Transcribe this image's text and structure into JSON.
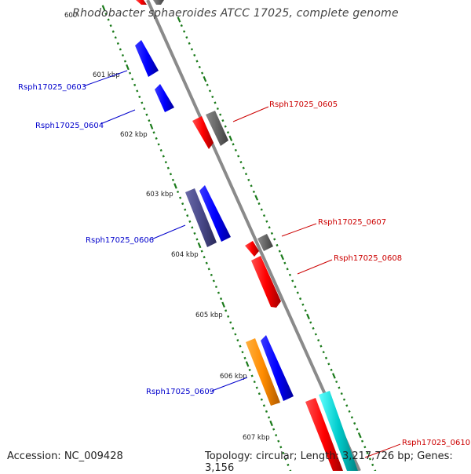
{
  "title": "Rhodobacter sphaeroides ATCC 17025, complete genome",
  "ticks": {
    "partial_top": "600",
    "labels": [
      "601 kbp",
      "602 kbp",
      "603 kbp",
      "604 kbp",
      "605 kbp",
      "606 kbp",
      "607 kbp"
    ]
  },
  "genes": [
    {
      "id": "Rsph17025_0603",
      "strand": "minus",
      "color": "#0000ff"
    },
    {
      "id": "Rsph17025_0604",
      "strand": "minus",
      "color": "#0000ff"
    },
    {
      "id": "Rsph17025_0605",
      "strand": "plus",
      "color": "#ff0000"
    },
    {
      "id": "Rsph17025_0606",
      "strand": "minus",
      "color": "#0000ff"
    },
    {
      "id": "Rsph17025_0607",
      "strand": "plus",
      "color": "#ff0000"
    },
    {
      "id": "Rsph17025_0608",
      "strand": "plus",
      "color": "#ff0000"
    },
    {
      "id": "Rsph17025_0609",
      "strand": "minus",
      "color": "#0000ff"
    },
    {
      "id": "Rsph17025_0610",
      "strand": "plus",
      "color": "#ff0000"
    }
  ],
  "colors": {
    "backbone": "#8a8a8a",
    "tick": "#1a7a1a",
    "plus_label": "#cc0000",
    "minus_label": "#0000cc",
    "blue": "#0000ff",
    "red": "#ff0000",
    "gray": "#666666",
    "slate": "#4a4a8a",
    "orange": "#ff8c00",
    "cyan": "#00cccc"
  },
  "footer": {
    "accession": "Accession: NC_009428",
    "topology": "Topology: circular; Length: 3,217,726 bp; Genes: 3,156"
  }
}
